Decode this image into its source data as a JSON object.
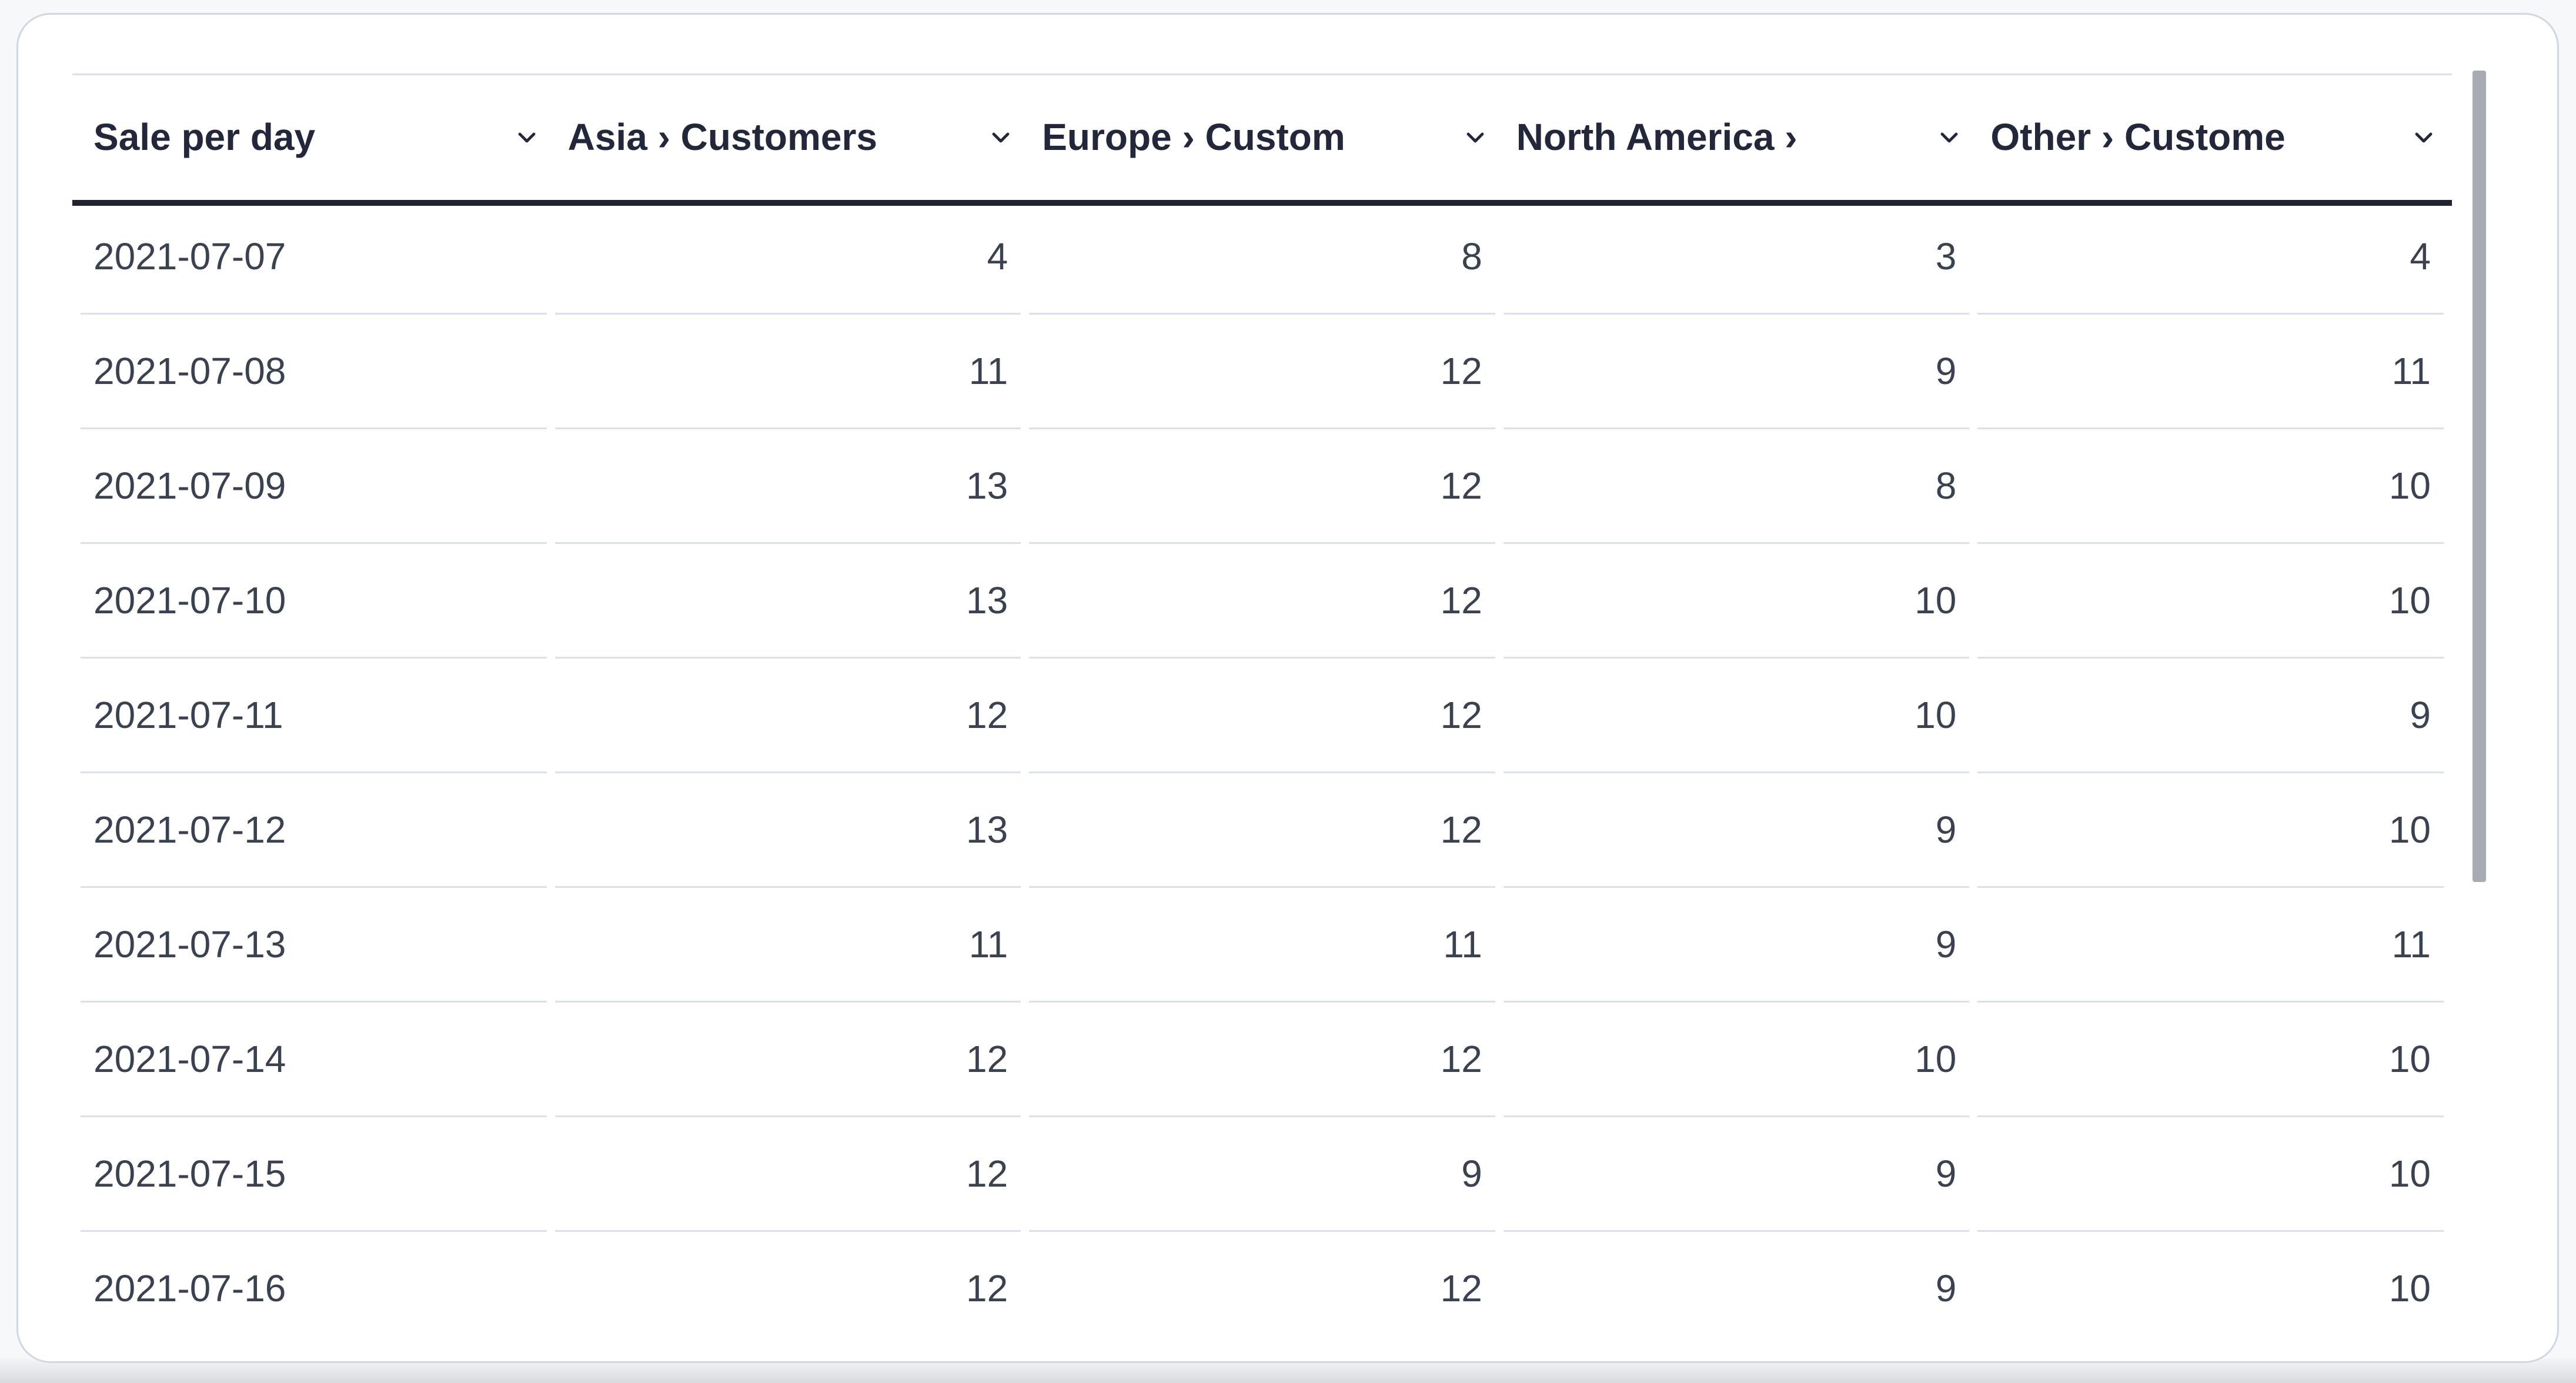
{
  "page": {
    "background_color": "#F6F8FA",
    "bottom_shadow_color": "#D8DBE0"
  },
  "card": {
    "background_color": "#FFFFFF",
    "border_color": "#CFD8E2"
  },
  "table": {
    "header_underline_color": "#1F2430",
    "separator_color": "#DBE1EA",
    "header_text_color": "#23273B",
    "cell_text_color": "#3A4150",
    "columns": [
      {
        "label": "Sale per day",
        "align": "left",
        "sort_icon": "chevron-down-icon"
      },
      {
        "label": "Asia › Customers",
        "align": "right",
        "sort_icon": "chevron-down-icon"
      },
      {
        "label": "Europe › Custom",
        "align": "right",
        "sort_icon": "chevron-down-icon"
      },
      {
        "label": "North America ›",
        "align": "right",
        "sort_icon": "chevron-down-icon"
      },
      {
        "label": "Other › Custome",
        "align": "right",
        "sort_icon": "chevron-down-icon"
      }
    ],
    "rows": [
      {
        "date": "2021-07-07",
        "values": [
          4,
          8,
          3,
          4
        ]
      },
      {
        "date": "2021-07-08",
        "values": [
          11,
          12,
          9,
          11
        ]
      },
      {
        "date": "2021-07-09",
        "values": [
          13,
          12,
          8,
          10
        ]
      },
      {
        "date": "2021-07-10",
        "values": [
          13,
          12,
          10,
          10
        ]
      },
      {
        "date": "2021-07-11",
        "values": [
          12,
          12,
          10,
          9
        ]
      },
      {
        "date": "2021-07-12",
        "values": [
          13,
          12,
          9,
          10
        ]
      },
      {
        "date": "2021-07-13",
        "values": [
          11,
          11,
          9,
          11
        ]
      },
      {
        "date": "2021-07-14",
        "values": [
          12,
          12,
          10,
          10
        ]
      },
      {
        "date": "2021-07-15",
        "values": [
          12,
          9,
          9,
          10
        ]
      },
      {
        "date": "2021-07-16",
        "values": [
          12,
          12,
          9,
          10
        ]
      }
    ]
  },
  "scrollbar": {
    "thumb_color": "#A7ACB4"
  }
}
